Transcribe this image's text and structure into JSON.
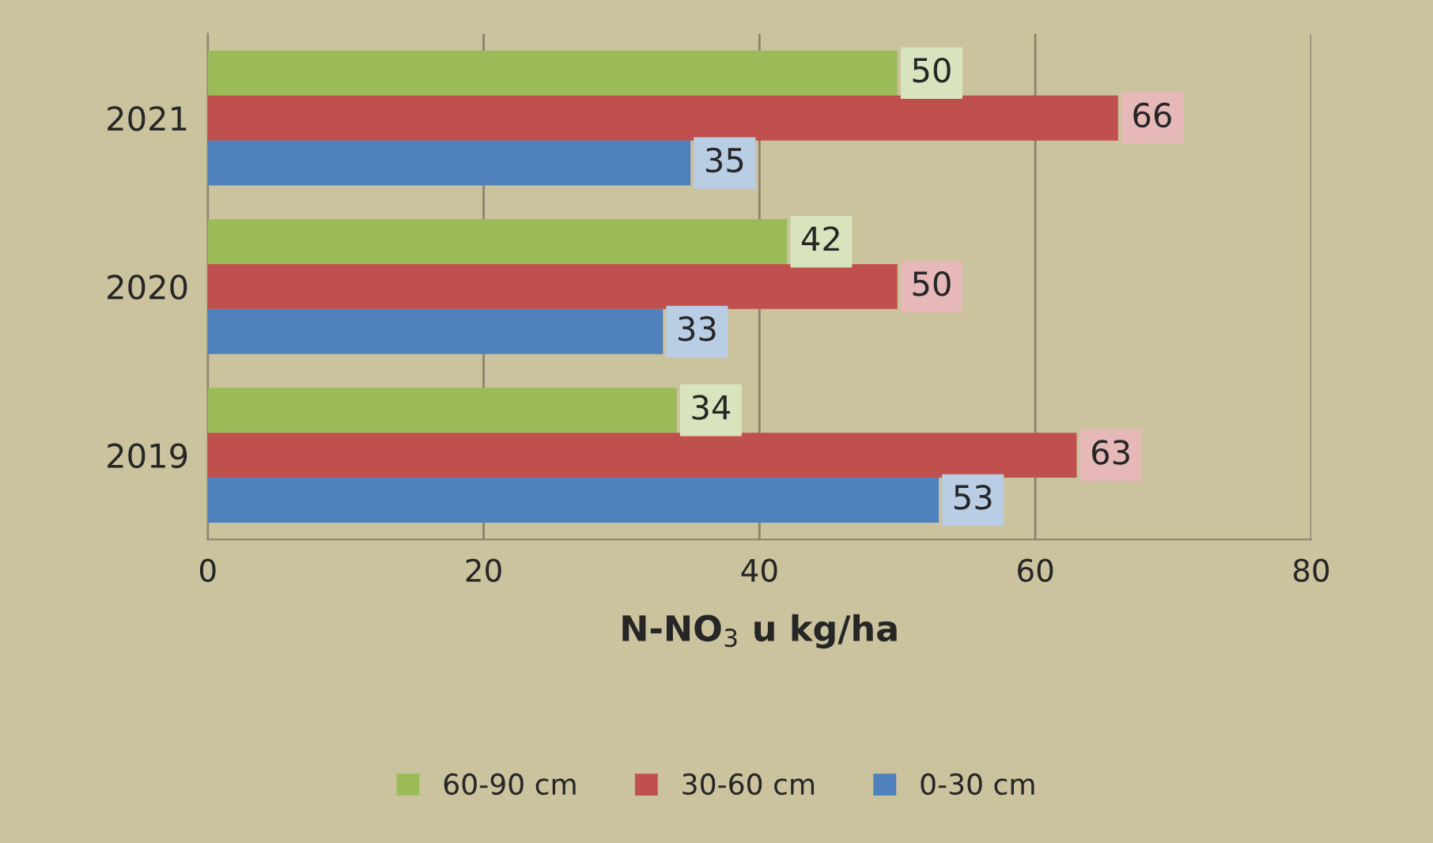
{
  "chart_data": {
    "type": "bar",
    "orientation": "horizontal",
    "categories": [
      "2021",
      "2020",
      "2019"
    ],
    "series": [
      {
        "name": "60-90 cm",
        "color": "#9bbb59",
        "values": [
          50,
          42,
          34
        ]
      },
      {
        "name": "30-60 cm",
        "color": "#c0504d",
        "values": [
          66,
          50,
          63
        ]
      },
      {
        "name": "0-30 cm",
        "color": "#4f81bd",
        "values": [
          35,
          33,
          53
        ]
      }
    ],
    "xlim": [
      0,
      80
    ],
    "xticks": [
      0,
      20,
      40,
      60,
      80
    ],
    "xlabel": "N-NO$_{3}$ u kg/ha",
    "grid": "x",
    "legend": "bottom",
    "data_labels": true
  }
}
